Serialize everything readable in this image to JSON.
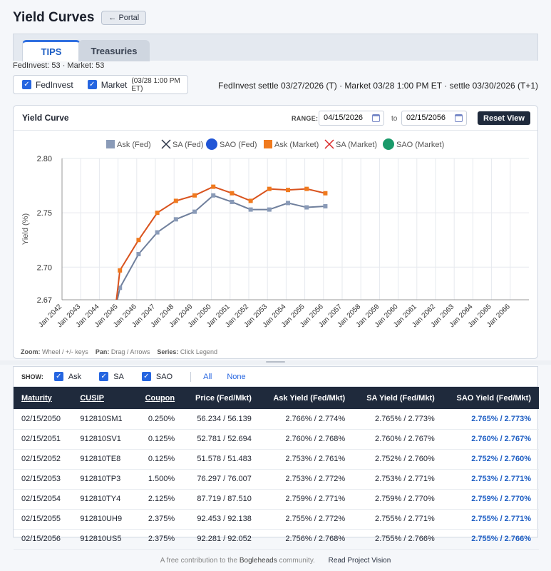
{
  "header": {
    "title": "Yield Curves",
    "portal_label": "← Portal"
  },
  "tabs": [
    {
      "label": "TIPS",
      "active": true
    },
    {
      "label": "Treasuries",
      "active": false
    }
  ],
  "counts": "FedInvest: 53 · Market: 53",
  "sources": {
    "fedinvest_label": "FedInvest",
    "market_label": "Market",
    "market_time": "(03/28 1:00 PM ET)"
  },
  "settle_info": "FedInvest settle 03/27/2026 (T) · Market 03/28 1:00 PM ET · settle 03/30/2026 (T+1)",
  "chart_panel": {
    "title": "Yield Curve",
    "range_label": "RANGE:",
    "range_from": "04/15/2026",
    "to_label": "to",
    "range_to": "02/15/2056",
    "reset_label": "Reset View",
    "footer": {
      "zoom_k": "Zoom:",
      "zoom_v": "Wheel / +/- keys",
      "pan_k": "Pan:",
      "pan_v": "Drag / Arrows",
      "series_k": "Series:",
      "series_v": "Click Legend"
    }
  },
  "chart_data": {
    "type": "line",
    "xlabel": "",
    "ylabel": "Yield (%)",
    "ylim": [
      2.67,
      2.8
    ],
    "y_ticks": [
      "2.80",
      "2.75",
      "2.70",
      "2.67"
    ],
    "y_tick_values": [
      2.8,
      2.75,
      2.7,
      2.67
    ],
    "x_ticks": [
      "Jan 2042",
      "Jan 2043",
      "Jan 2044",
      "Jan 2045",
      "Jan 2046",
      "Jan 2047",
      "Jan 2048",
      "Jan 2049",
      "Jan 2050",
      "Jan 2051",
      "Jan 2052",
      "Jan 2053",
      "Jan 2054",
      "Jan 2055",
      "Jan 2056",
      "Jan 2057",
      "Jan 2058",
      "Jan 2059",
      "Jan 2060",
      "Jan 2061",
      "Jan 2062",
      "Jan 2063",
      "Jan 2064",
      "Jan 2065",
      "Jan 2066"
    ],
    "x_tick_years": [
      2042,
      2043,
      2044,
      2045,
      2046,
      2047,
      2048,
      2049,
      2050,
      2051,
      2052,
      2053,
      2054,
      2055,
      2056,
      2057,
      2058,
      2059,
      2060,
      2061,
      2062,
      2063,
      2064,
      2065,
      2066
    ],
    "xlim_years": [
      2042,
      2067
    ],
    "legend": [
      {
        "label": "Ask (Fed)",
        "marker": "square",
        "color": "#8a9bb8"
      },
      {
        "label": "SA (Fed)",
        "marker": "x",
        "color": "#2a3346"
      },
      {
        "label": "SAO (Fed)",
        "marker": "circle",
        "color": "#2155d6"
      },
      {
        "label": "Ask (Market)",
        "marker": "square",
        "color": "#f07a1e"
      },
      {
        "label": "SA (Market)",
        "marker": "x",
        "color": "#d92626"
      },
      {
        "label": "SAO (Market)",
        "marker": "circle",
        "color": "#1a9a6a"
      }
    ],
    "series": [
      {
        "name": "Ask (Fed)",
        "color": "#8a9bb8",
        "x": [
          2044.9,
          2045.1,
          2046.1,
          2047.1,
          2048.1,
          2049.1,
          2050.1,
          2051.1,
          2052.1,
          2053.1,
          2054.1,
          2055.1,
          2056.1
        ],
        "values": [
          2.665,
          2.681,
          2.712,
          2.732,
          2.744,
          2.751,
          2.766,
          2.76,
          2.753,
          2.753,
          2.759,
          2.755,
          2.756
        ]
      },
      {
        "name": "Ask (Market)",
        "color": "#f07a1e",
        "x": [
          2044.9,
          2045.1,
          2046.1,
          2047.1,
          2048.1,
          2049.1,
          2050.1,
          2051.1,
          2052.1,
          2053.1,
          2054.1,
          2055.1,
          2056.1
        ],
        "values": [
          2.668,
          2.697,
          2.725,
          2.75,
          2.761,
          2.766,
          2.774,
          2.768,
          2.761,
          2.772,
          2.771,
          2.772,
          2.768
        ]
      }
    ]
  },
  "table": {
    "show_label": "SHOW:",
    "toggles": [
      "Ask",
      "SA",
      "SAO"
    ],
    "all_label": "All",
    "none_label": "None",
    "headers": [
      "Maturity",
      "CUSIP",
      "Coupon",
      "Price (Fed/Mkt)",
      "Ask Yield (Fed/Mkt)",
      "SA Yield (Fed/Mkt)",
      "SAO Yield (Fed/Mkt)"
    ],
    "rows": [
      [
        "02/15/2050",
        "912810SM1",
        "0.250%",
        "56.234 / 56.139",
        "2.766% / 2.774%",
        "2.765% / 2.773%",
        "2.765% / 2.773%"
      ],
      [
        "02/15/2051",
        "912810SV1",
        "0.125%",
        "52.781 / 52.694",
        "2.760% / 2.768%",
        "2.760% / 2.767%",
        "2.760% / 2.767%"
      ],
      [
        "02/15/2052",
        "912810TE8",
        "0.125%",
        "51.578 / 51.483",
        "2.753% / 2.761%",
        "2.752% / 2.760%",
        "2.752% / 2.760%"
      ],
      [
        "02/15/2053",
        "912810TP3",
        "1.500%",
        "76.297 / 76.007",
        "2.753% / 2.772%",
        "2.753% / 2.771%",
        "2.753% / 2.771%"
      ],
      [
        "02/15/2054",
        "912810TY4",
        "2.125%",
        "87.719 / 87.510",
        "2.759% / 2.771%",
        "2.759% / 2.770%",
        "2.759% / 2.770%"
      ],
      [
        "02/15/2055",
        "912810UH9",
        "2.375%",
        "92.453 / 92.138",
        "2.755% / 2.772%",
        "2.755% / 2.771%",
        "2.755% / 2.771%"
      ],
      [
        "02/15/2056",
        "912810US5",
        "2.375%",
        "92.281 / 92.052",
        "2.756% / 2.768%",
        "2.755% / 2.766%",
        "2.755% / 2.766%"
      ]
    ]
  },
  "footer": {
    "text": "A free contribution to the",
    "community_link": "Bogleheads",
    "text_after": "community.",
    "vision_link": "Read Project Vision"
  }
}
